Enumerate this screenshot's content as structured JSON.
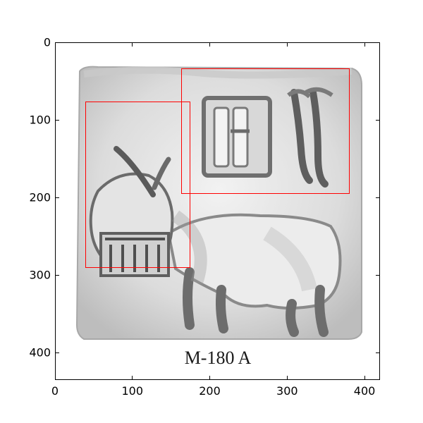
{
  "image": {
    "caption": "M-180 A",
    "description_icon": "seal-impression-bull-icon"
  },
  "axes": {
    "x": {
      "ticks": [
        0,
        100,
        200,
        300,
        400
      ],
      "range": [
        0,
        420
      ]
    },
    "y": {
      "ticks": [
        0,
        100,
        200,
        300,
        400
      ],
      "range": [
        0,
        435
      ],
      "inverted": true
    }
  },
  "overlays": [
    {
      "name": "bull-head-box",
      "x1": 38,
      "y1": 75,
      "x2": 174,
      "y2": 290,
      "color": "#ff0000"
    },
    {
      "name": "inscription-box",
      "x1": 162,
      "y1": 33,
      "x2": 380,
      "y2": 194,
      "color": "#ff0000"
    }
  ]
}
